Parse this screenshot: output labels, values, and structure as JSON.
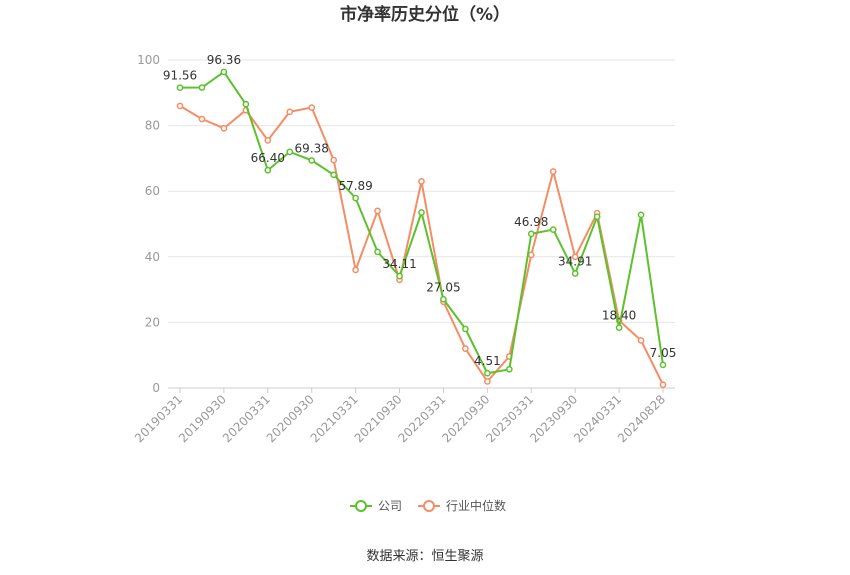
{
  "chart_data": {
    "type": "line",
    "title": "市净率历史分位（%）",
    "x": [
      "20190331",
      "20190630",
      "20190930",
      "20191231",
      "20200331",
      "20200630",
      "20200930",
      "20201231",
      "20210331",
      "20210630",
      "20210930",
      "20211231",
      "20220331",
      "20220630",
      "20220930",
      "20221231",
      "20230331",
      "20230630",
      "20230930",
      "20231231",
      "20240331",
      "20240630",
      "20240828"
    ],
    "x_tick_labels": [
      "20190331",
      "20190930",
      "20200331",
      "20200930",
      "20210331",
      "20210930",
      "20220331",
      "20220930",
      "20230331",
      "20230930",
      "20240331",
      "20240828"
    ],
    "ylim": [
      0,
      100
    ],
    "y_ticks": [
      0,
      20,
      40,
      60,
      80,
      100
    ],
    "grid": true,
    "legend_position": "bottom",
    "series": [
      {
        "name": "公司",
        "color": "#5dc12d",
        "values": [
          91.56,
          91.6,
          96.36,
          86.5,
          66.4,
          72.0,
          69.38,
          65.0,
          57.89,
          41.5,
          34.11,
          53.5,
          27.05,
          18.0,
          4.51,
          5.7,
          46.98,
          48.3,
          34.91,
          52.2,
          18.4,
          52.8,
          7.05
        ],
        "labels": [
          "91.56",
          "",
          "96.36",
          "",
          "66.40",
          "",
          "69.38",
          "",
          "57.89",
          "",
          "34.11",
          "",
          "27.05",
          "",
          "4.51",
          "",
          "46.98",
          "",
          "34.91",
          "",
          "18.40",
          "",
          "7.05"
        ]
      },
      {
        "name": "行业中位数",
        "color": "#f58d64",
        "values": [
          86.0,
          82.0,
          79.2,
          84.7,
          75.5,
          84.2,
          85.5,
          69.5,
          36.0,
          54.0,
          33.0,
          63.0,
          26.3,
          12.0,
          2.0,
          9.6,
          40.6,
          66.0,
          40.0,
          53.3,
          20.6,
          14.5,
          1.0
        ]
      }
    ]
  },
  "footer": {
    "source": "数据来源：恒生聚源"
  }
}
